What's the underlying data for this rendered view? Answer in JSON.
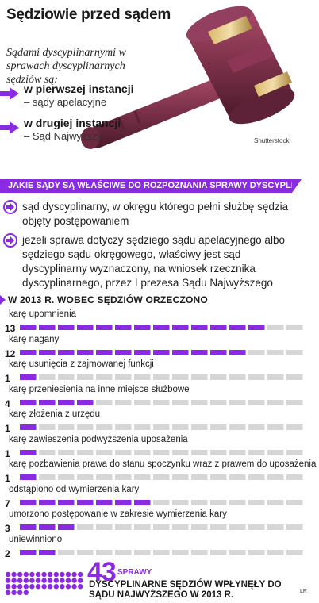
{
  "title": "Sędziowie przed sądem",
  "subtitle": "Sądami dyscyplinarnymi w sprawach dyscyplinarnych sędziów są:",
  "instances": [
    {
      "head": "w pierwszej instancji",
      "sub": "– sądy apelacyjne"
    },
    {
      "head": "w drugiej instancji",
      "sub": "– Sąd Najwyższy"
    }
  ],
  "photo_credit": "Shutterstock",
  "banner": "JAKIE SĄDY SĄ WŁAŚCIWE DO ROZPOZNANIA SPRAWY DYSCYPLINARNEJ:",
  "courts": [
    "sąd dyscyplinarny, w okręgu którego pełni służbę sędzia objęty postępowaniem",
    "jeżeli sprawa dotyczy sędziego sądu apelacyjnego albo sędziego sądu okręgowego, właściwy jest sąd dyscyplinarny wyznaczony, na wniosek rzecznika dyscyplinarnego, przez I prezesa Sądu Najwyższego"
  ],
  "section_title": "W 2013 R. WOBEC SĘDZIÓW ORZECZONO",
  "chart_data": {
    "type": "bar",
    "categories": [
      "karę upomnienia",
      "karę nagany",
      "karę usunięcia z zajmowanej funkcji",
      "karę przeniesienia na inne miejsce służbowe",
      "karę złożenia z urzędu",
      "karę zawieszenia podwyższenia uposażenia",
      "karę pozbawienia prawa do stanu spoczynku wraz z prawem do uposażenia",
      "odstąpiono od wymierzenia kary",
      "umorzono postępowanie w zakresie wymierzenia kary",
      "uniewinniono"
    ],
    "values": [
      13,
      12,
      1,
      4,
      1,
      1,
      1,
      7,
      3,
      2
    ],
    "value_labels": [
      "13",
      "12",
      "1",
      "4",
      "1",
      "1",
      "1",
      "7",
      "3",
      "2"
    ],
    "max_cells": 15
  },
  "stats": {
    "number": "43",
    "unit": "SPRAWY",
    "description": "DYSCYPLINARNE SĘDZIÓW WPŁYNĘŁY DO SĄDU NAJWYŻSZEGO W 2013 R."
  },
  "initials": "LR",
  "colors": {
    "accent": "#8a2be2",
    "track": "#d6d6d6",
    "gavel": "#7a3048"
  }
}
